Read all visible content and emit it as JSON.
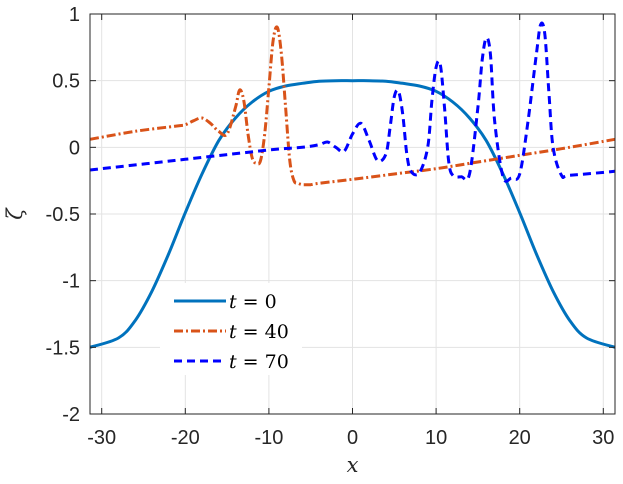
{
  "chart_data": {
    "type": "line",
    "xlabel": "x",
    "ylabel": "ζ",
    "xlim": [
      -31.4,
      31.4
    ],
    "ylim": [
      -2,
      1
    ],
    "xticks": [
      -30,
      -20,
      -10,
      0,
      10,
      20,
      30
    ],
    "yticks": [
      -2,
      -1.5,
      -1,
      -0.5,
      0,
      0.5,
      1
    ],
    "xtick_labels": [
      "-30",
      "-20",
      "-10",
      "0",
      "10",
      "20",
      "30"
    ],
    "ytick_labels": [
      "-2",
      "-1.5",
      "-1",
      "-0.5",
      "0",
      "0.5",
      "1"
    ],
    "grid": true,
    "legend_position": "bottom-left",
    "series": [
      {
        "name": "t = 0",
        "legend_var": "t",
        "legend_eq": " = 0",
        "color": "#0072BD",
        "style": "solid",
        "x": [
          -31.4,
          -28,
          -26,
          -24,
          -22,
          -20,
          -18,
          -16,
          -14,
          -12,
          -10,
          -8,
          -6,
          -4,
          -2,
          0,
          2,
          4,
          6,
          8,
          10,
          12,
          14,
          16,
          18,
          20,
          22,
          24,
          26,
          28,
          31.4
        ],
        "y": [
          -1.5,
          -1.43,
          -1.3,
          -1.08,
          -0.8,
          -0.49,
          -0.2,
          0.05,
          0.22,
          0.34,
          0.42,
          0.46,
          0.48,
          0.495,
          0.5,
          0.5,
          0.5,
          0.495,
          0.48,
          0.46,
          0.42,
          0.34,
          0.22,
          0.05,
          -0.2,
          -0.49,
          -0.8,
          -1.08,
          -1.3,
          -1.43,
          -1.5
        ]
      },
      {
        "name": "t = 40",
        "legend_var": "t",
        "legend_eq": " = 40",
        "color": "#D95319",
        "style": "dashdot",
        "x": [
          -31.4,
          -26,
          -21,
          -20,
          -19,
          -18,
          -17,
          -16,
          -15,
          -14,
          -13.5,
          -13,
          -12.5,
          -12,
          -11.5,
          -11,
          -10.5,
          -10,
          -9.5,
          -9,
          -8.5,
          -8,
          -7.5,
          -7,
          -6.5,
          -6,
          -5.5,
          -5,
          -4,
          0,
          5,
          10,
          15,
          20,
          25,
          31.4
        ],
        "y": [
          0.06,
          0.12,
          0.16,
          0.17,
          0.2,
          0.22,
          0.18,
          0.12,
          0.1,
          0.3,
          0.43,
          0.35,
          0.1,
          -0.08,
          -0.12,
          -0.1,
          0.1,
          0.45,
          0.8,
          0.9,
          0.7,
          0.3,
          -0.1,
          -0.25,
          -0.27,
          -0.28,
          -0.28,
          -0.28,
          -0.27,
          -0.24,
          -0.2,
          -0.16,
          -0.11,
          -0.06,
          -0.01,
          0.06
        ]
      },
      {
        "name": "t = 70",
        "legend_var": "t",
        "legend_eq": " = 70",
        "color": "#0000FF",
        "style": "dashed",
        "x": [
          -31.4,
          -20,
          -10,
          -6,
          -4,
          -3,
          -2,
          -1,
          0,
          1,
          2,
          3,
          4,
          4.5,
          5,
          5.5,
          6,
          6.5,
          7,
          8,
          9,
          9.5,
          10,
          10.5,
          11,
          11.5,
          12,
          13,
          14,
          15,
          15.5,
          16,
          16.5,
          17,
          18,
          19,
          20,
          21,
          22,
          22.5,
          23,
          23.5,
          24,
          25,
          26,
          31.4
        ],
        "y": [
          -0.17,
          -0.09,
          -0.02,
          0.0,
          0.02,
          0.04,
          0.0,
          -0.03,
          0.1,
          0.18,
          0.05,
          -0.1,
          -0.05,
          0.15,
          0.38,
          0.42,
          0.25,
          -0.05,
          -0.18,
          -0.19,
          0.0,
          0.35,
          0.6,
          0.62,
          0.3,
          -0.1,
          -0.21,
          -0.22,
          -0.2,
          0.3,
          0.65,
          0.82,
          0.7,
          0.2,
          -0.22,
          -0.23,
          -0.2,
          0.2,
          0.7,
          0.92,
          0.85,
          0.4,
          0.0,
          -0.21,
          -0.21,
          -0.18
        ]
      }
    ]
  }
}
